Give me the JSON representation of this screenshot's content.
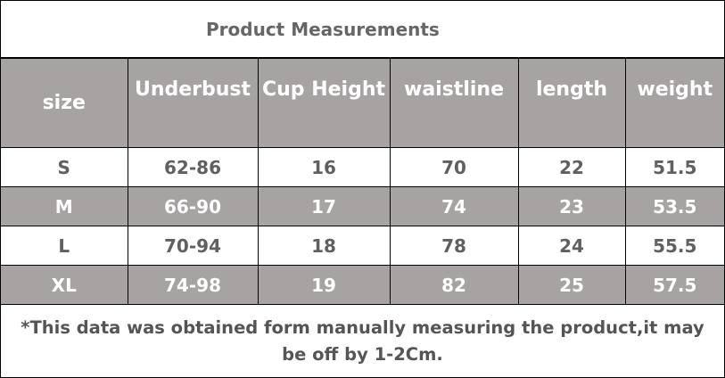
{
  "title": "Product Measurements",
  "headers": [
    "size",
    "Underbust",
    "Cup Height",
    "waistline",
    "length",
    "weight"
  ],
  "rows": [
    [
      "S",
      "62-86",
      "16",
      "70",
      "22",
      "51.5"
    ],
    [
      "M",
      "66-90",
      "17",
      "74",
      "23",
      "53.5"
    ],
    [
      "L",
      "70-94",
      "18",
      "78",
      "24",
      "55.5"
    ],
    [
      "XL",
      "74-98",
      "19",
      "82",
      "25",
      "57.5"
    ]
  ],
  "footnote": "*This data was obtained form manually measuring the product,it may be off by 1-2Cm.",
  "colors": {
    "header_bg": "#a7a3a2",
    "header_text": "#ffffff",
    "body_text": "#606060"
  }
}
